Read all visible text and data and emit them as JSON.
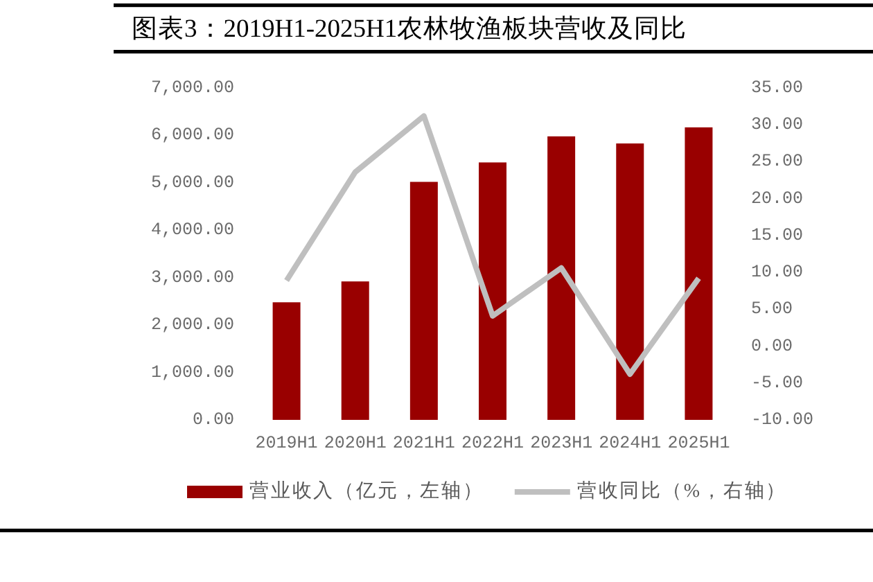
{
  "chart_data": {
    "type": "bar",
    "title": "图表3：2019H1-2025H1农林牧渔板块营收及同比",
    "categories": [
      "2019H1",
      "2020H1",
      "2021H1",
      "2022H1",
      "2023H1",
      "2024H1",
      "2025H1"
    ],
    "series": [
      {
        "name": "营业收入（亿元，左轴）",
        "color": "#990000",
        "values": [
          2480,
          2920,
          5020,
          5430,
          5980,
          5830,
          6170
        ]
      },
      {
        "name": "营收同比（%，右轴）",
        "type": "line",
        "axis": "y2",
        "color": "#bfbfbf",
        "values": [
          8.9,
          23.6,
          31.2,
          4.1,
          10.6,
          -3.8,
          9.2
        ]
      }
    ],
    "ylim": [
      0,
      7000
    ],
    "yticks": [
      {
        "value": 0,
        "label": "0.00"
      },
      {
        "value": 1000,
        "label": "1,000.00"
      },
      {
        "value": 2000,
        "label": "2,000.00"
      },
      {
        "value": 3000,
        "label": "3,000.00"
      },
      {
        "value": 4000,
        "label": "4,000.00"
      },
      {
        "value": 5000,
        "label": "5,000.00"
      },
      {
        "value": 6000,
        "label": "6,000.00"
      },
      {
        "value": 7000,
        "label": "7,000.00"
      }
    ],
    "y2lim": [
      -10,
      35
    ],
    "y2ticks": [
      {
        "value": -10,
        "label": "-10.00"
      },
      {
        "value": -5,
        "label": "-5.00"
      },
      {
        "value": 0,
        "label": "0.00"
      },
      {
        "value": 5,
        "label": "5.00"
      },
      {
        "value": 10,
        "label": "10.00"
      },
      {
        "value": 15,
        "label": "15.00"
      },
      {
        "value": 20,
        "label": "20.00"
      },
      {
        "value": 25,
        "label": "25.00"
      },
      {
        "value": 30,
        "label": "30.00"
      },
      {
        "value": 35,
        "label": "35.00"
      }
    ],
    "legend": "bottom",
    "grid": false
  }
}
